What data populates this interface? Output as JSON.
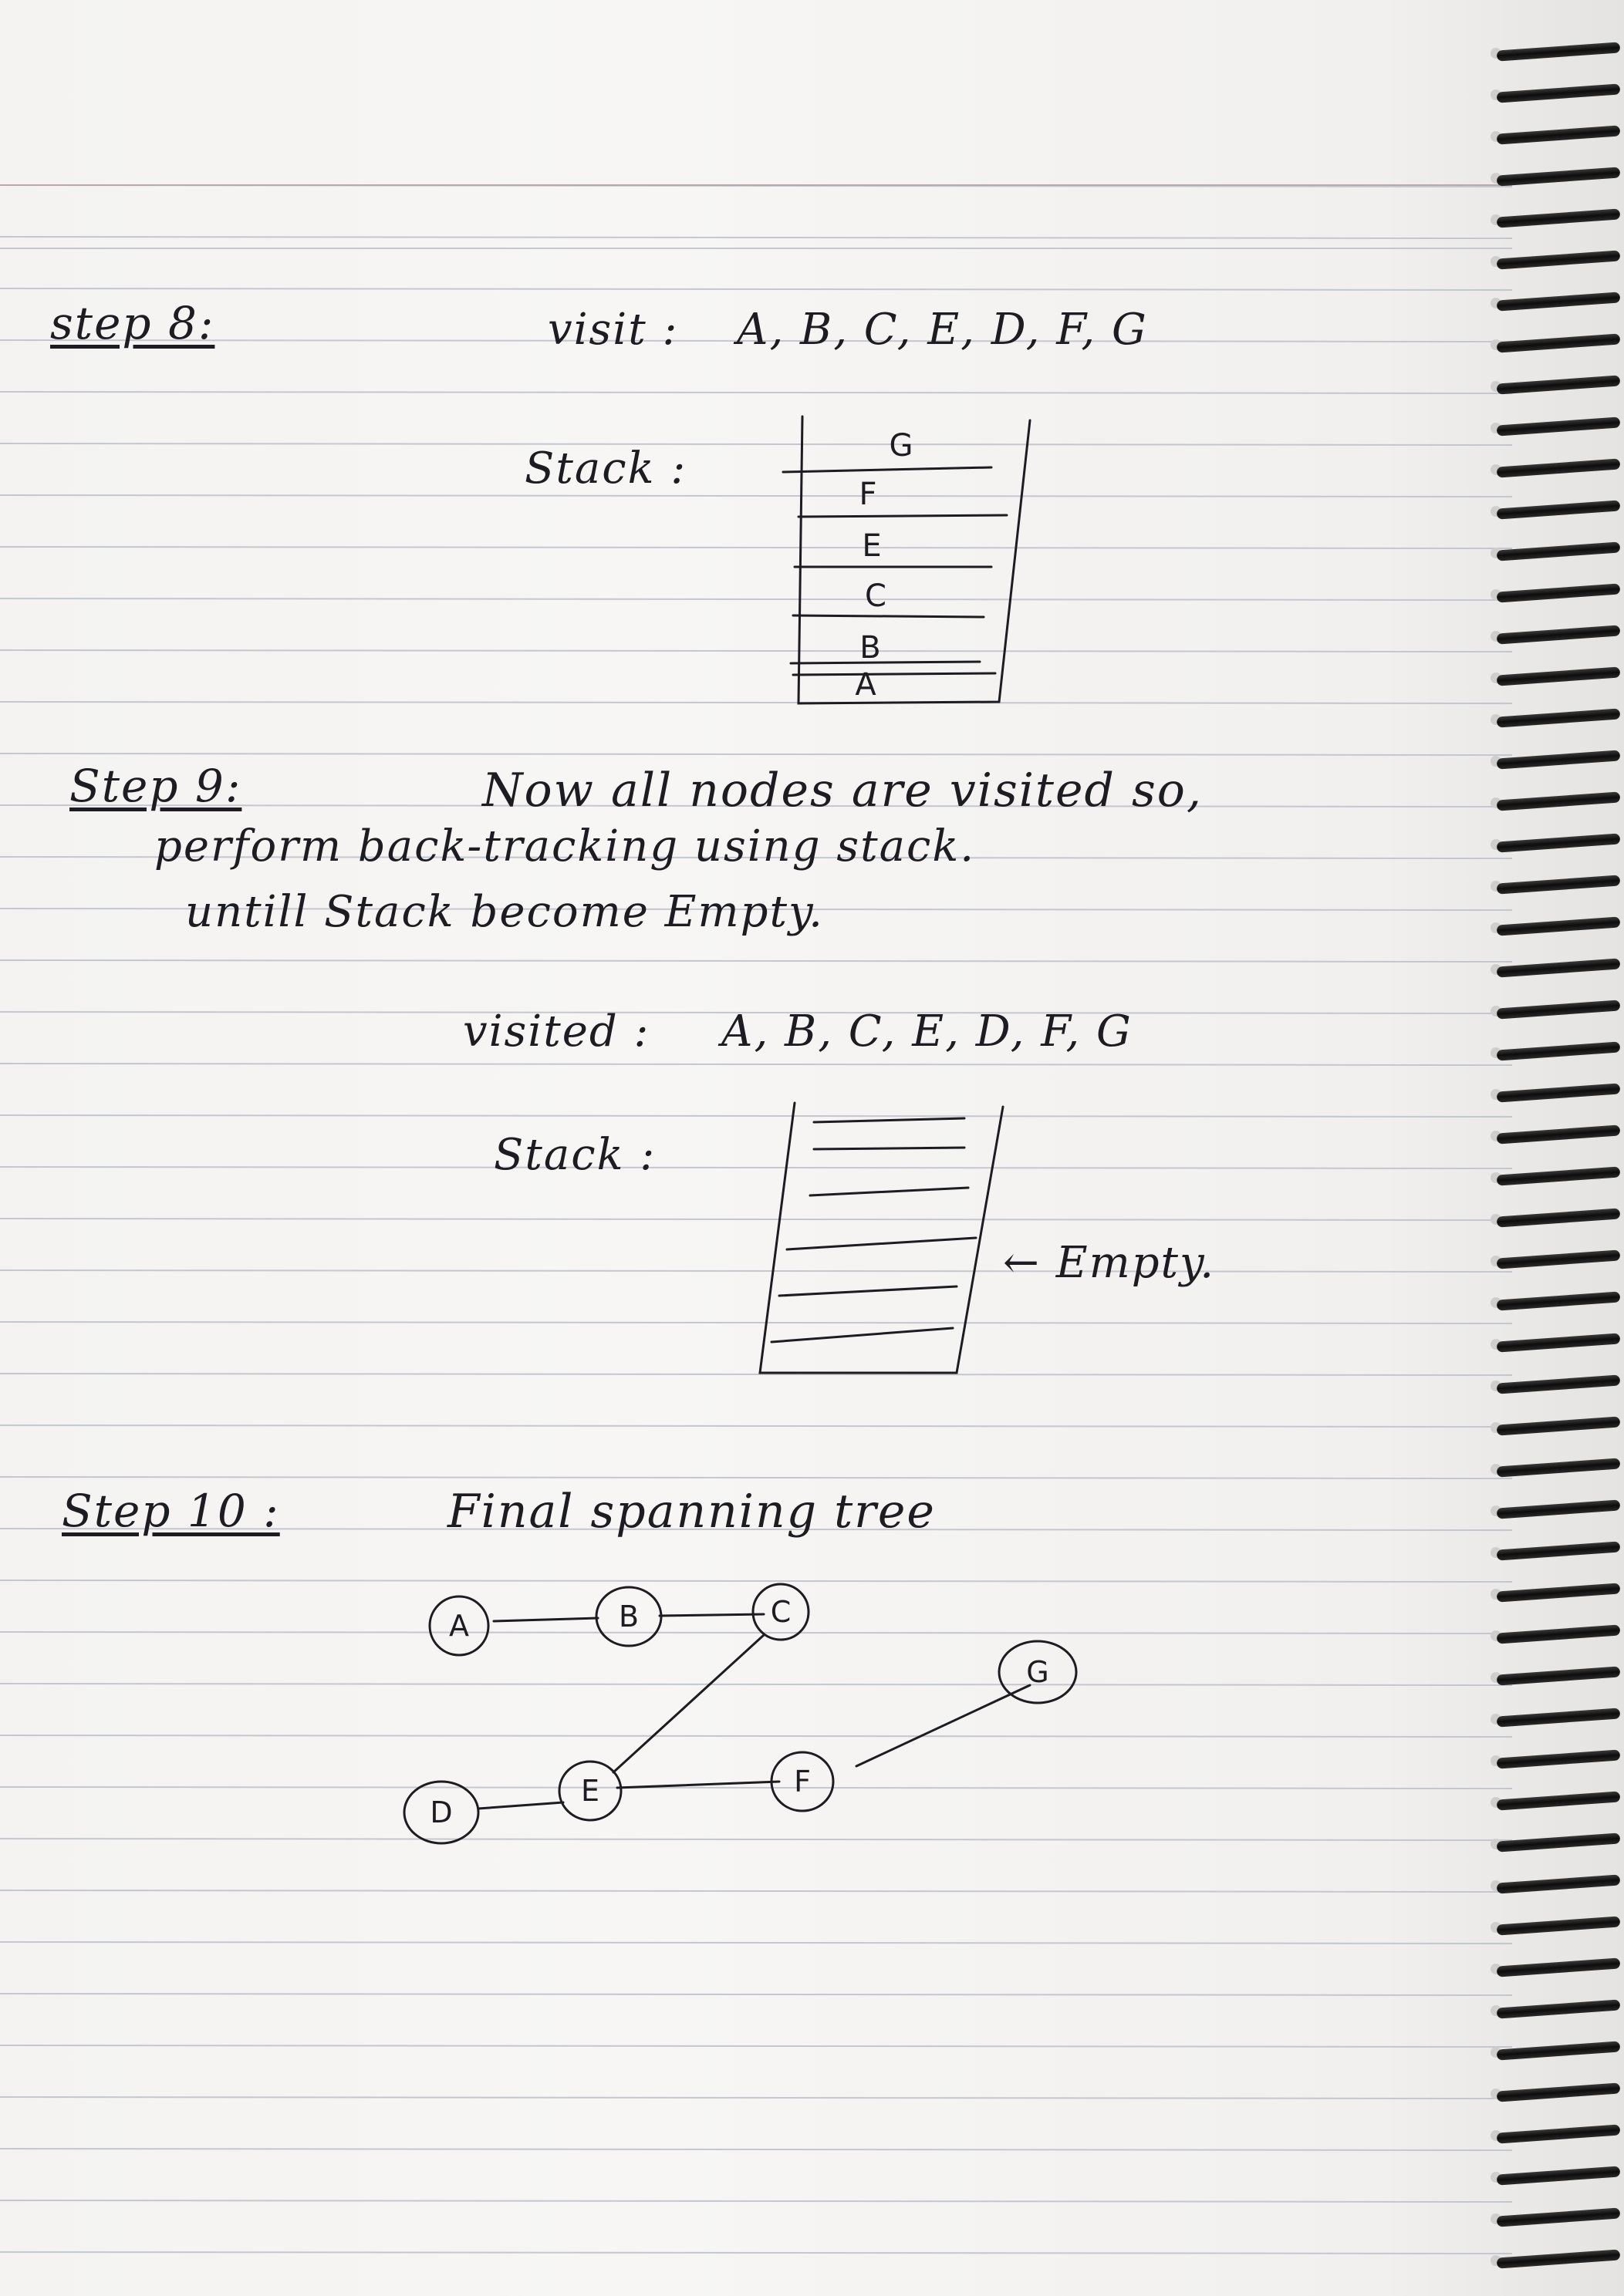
{
  "step8": {
    "label": "step 8:",
    "visit_prefix": "visit :",
    "visit_sequence": "A, B, C, E, D, F, G",
    "stack_label": "Stack :",
    "stack_items_top_to_bottom": [
      "G",
      "F",
      "E",
      "C",
      "B",
      "A"
    ]
  },
  "step9": {
    "label": "Step 9:",
    "line1": "Now all nodes are visited so,",
    "line2": "perform back-tracking using stack.",
    "line3": "untill Stack become Empty.",
    "visited_prefix": "visited :",
    "visited_sequence": "A, B, C, E, D, F, G",
    "stack_label": "Stack :",
    "empty_annotation": "← Empty."
  },
  "step10": {
    "label": "Step 10 :",
    "title": "Final spanning tree",
    "nodes": [
      "A",
      "B",
      "C",
      "D",
      "E",
      "F",
      "G"
    ]
  },
  "colors": {
    "ink": "#1c1c22",
    "rule": "#c4c7cf",
    "paper": "#f4f3f1"
  }
}
